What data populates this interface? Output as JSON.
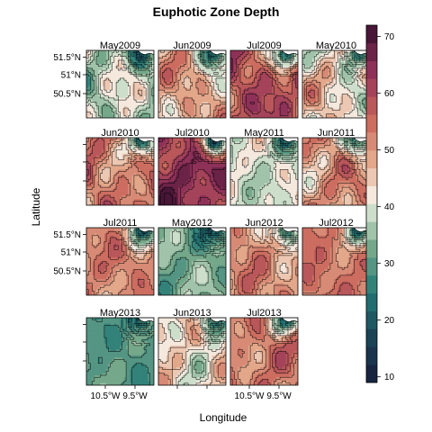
{
  "chart_data": {
    "type": "heatmap",
    "title": "Euphotic Zone Depth",
    "xlabel": "Longitude",
    "ylabel": "Latitude",
    "layout": {
      "columns": 4,
      "rows": 4
    },
    "x_ticks": [
      "10.5°W",
      "9.5°W"
    ],
    "y_ticks": [
      "51.5°N",
      "51°N",
      "50.5°N"
    ],
    "colorbar": {
      "ticks": [
        10,
        20,
        30,
        40,
        50,
        60,
        70
      ],
      "range": [
        9,
        72
      ],
      "levels": 20
    },
    "panels": [
      {
        "label": "May2009",
        "row": 0,
        "col": 0,
        "base": 38,
        "coast": 0.45,
        "amp": 7,
        "seed": 1
      },
      {
        "label": "Jun2009",
        "row": 0,
        "col": 1,
        "base": 48,
        "coast": 0.55,
        "amp": 6,
        "seed": 2
      },
      {
        "label": "Jul2009",
        "row": 0,
        "col": 2,
        "base": 58,
        "coast": 0.65,
        "amp": 6,
        "seed": 3
      },
      {
        "label": "May2010",
        "row": 0,
        "col": 3,
        "base": 44,
        "coast": 0.5,
        "amp": 7,
        "seed": 4
      },
      {
        "label": "Jun2010",
        "row": 1,
        "col": 0,
        "base": 53,
        "coast": 0.6,
        "amp": 6,
        "seed": 5
      },
      {
        "label": "Jul2010",
        "row": 1,
        "col": 1,
        "base": 64,
        "coast": 0.75,
        "amp": 5,
        "seed": 6
      },
      {
        "label": "May2011",
        "row": 1,
        "col": 2,
        "base": 40,
        "coast": 0.4,
        "amp": 4,
        "seed": 7
      },
      {
        "label": "Jun2011",
        "row": 1,
        "col": 3,
        "base": 50,
        "coast": 0.5,
        "amp": 6,
        "seed": 8
      },
      {
        "label": "Jul2011",
        "row": 2,
        "col": 0,
        "base": 52,
        "coast": 0.6,
        "amp": 4,
        "seed": 9
      },
      {
        "label": "May2012",
        "row": 2,
        "col": 1,
        "base": 33,
        "coast": 0.4,
        "amp": 4,
        "seed": 10
      },
      {
        "label": "Jun2012",
        "row": 2,
        "col": 2,
        "base": 51,
        "coast": 0.55,
        "amp": 5,
        "seed": 11
      },
      {
        "label": "Jul2012",
        "row": 2,
        "col": 3,
        "base": 54,
        "coast": 0.55,
        "amp": 3,
        "seed": 12
      },
      {
        "label": "May2013",
        "row": 3,
        "col": 0,
        "base": 30,
        "coast": 0.35,
        "amp": 3,
        "seed": 13
      },
      {
        "label": "Jun2013",
        "row": 3,
        "col": 1,
        "base": 44,
        "coast": 0.5,
        "amp": 6,
        "seed": 14
      },
      {
        "label": "Jul2013",
        "row": 3,
        "col": 2,
        "base": 53,
        "coast": 0.55,
        "amp": 5,
        "seed": 15
      }
    ]
  }
}
